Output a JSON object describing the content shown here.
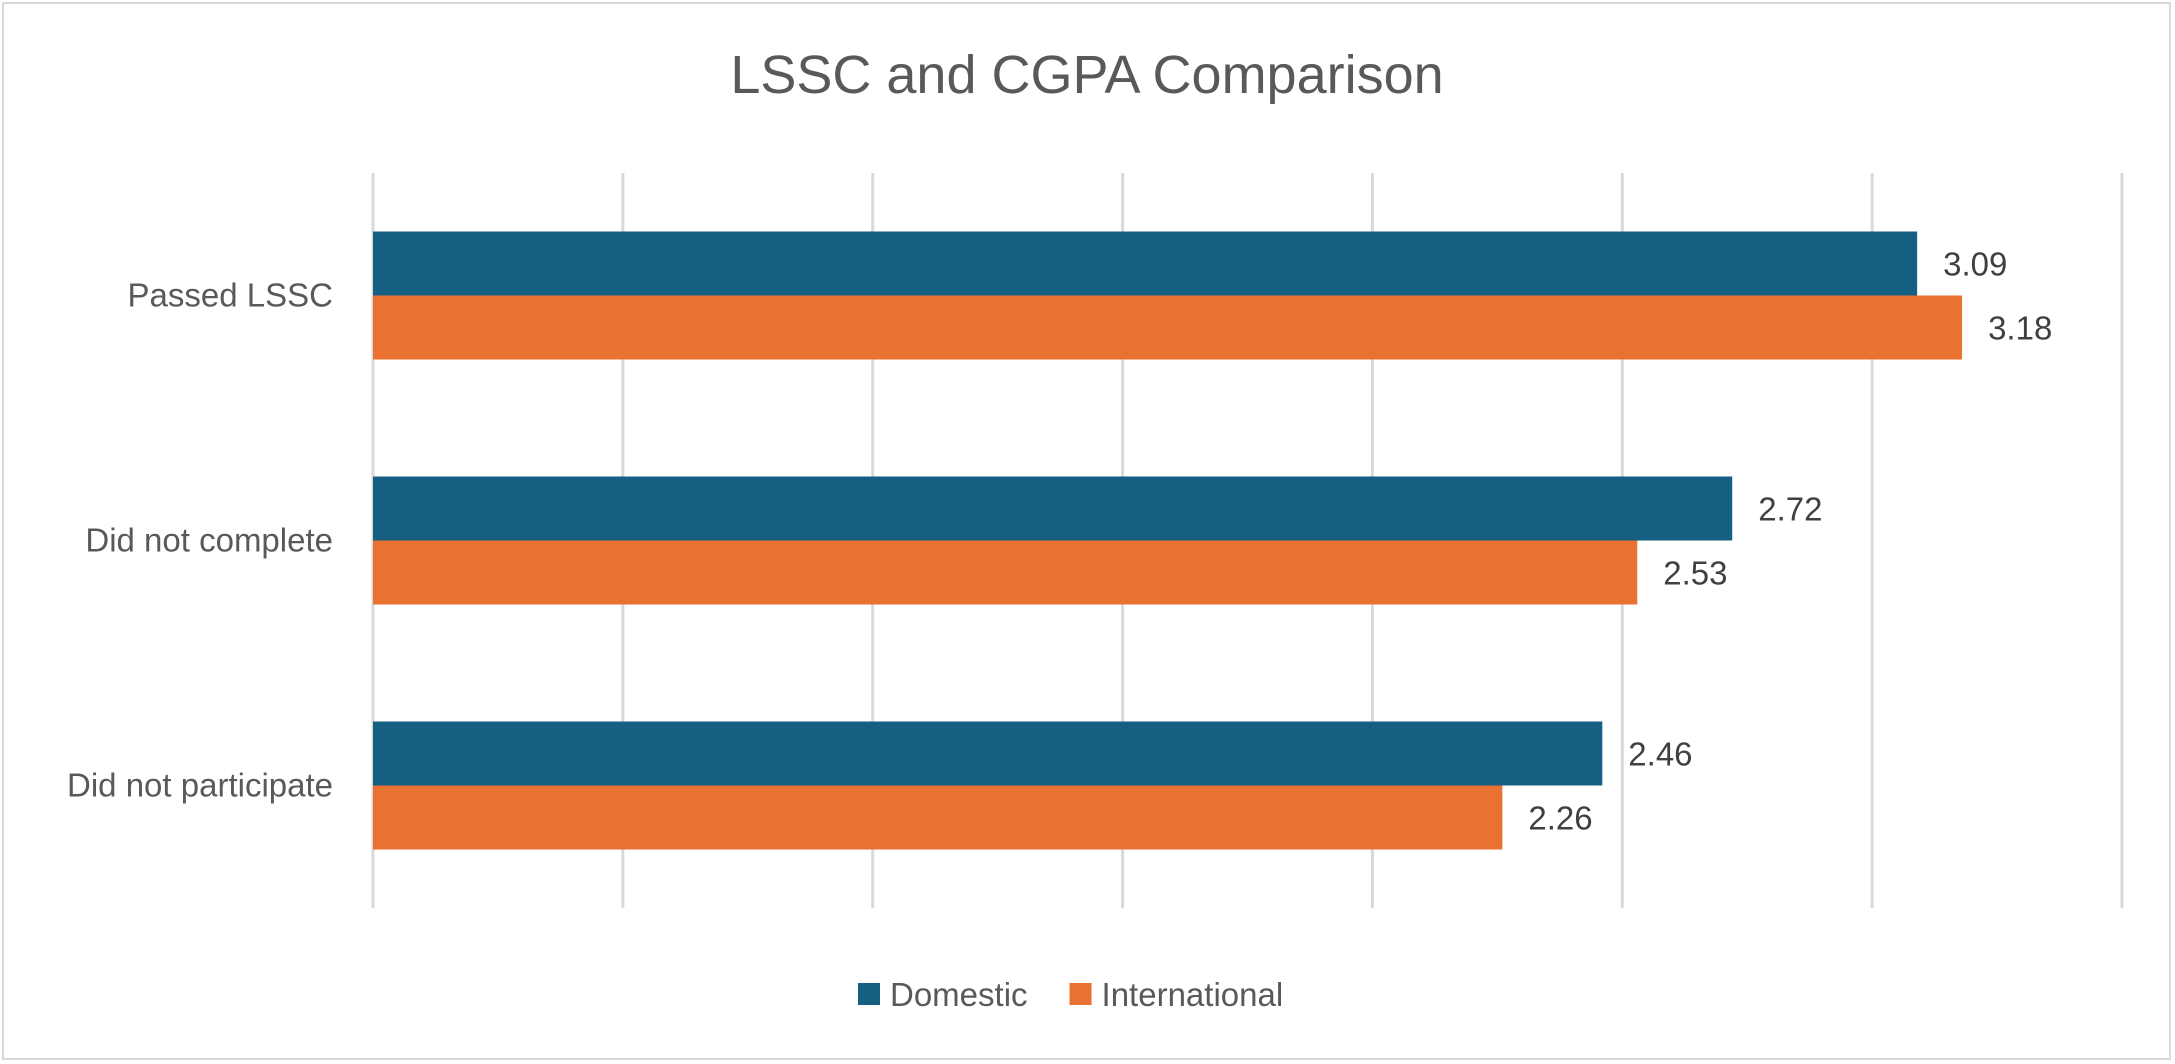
{
  "chart_data": {
    "type": "bar",
    "orientation": "horizontal",
    "title": "LSSC and CGPA Comparison",
    "categories": [
      "Passed LSSC",
      "Did not complete",
      "Did not participate"
    ],
    "series": [
      {
        "name": "Domestic",
        "values": [
          3.09,
          2.72,
          2.46
        ],
        "color": "#156082"
      },
      {
        "name": "International",
        "values": [
          3.18,
          2.53,
          2.26
        ],
        "color": "#E97132"
      }
    ],
    "xlim": [
      0,
      3.5
    ],
    "x_gridline_step": 0.5,
    "x_tick_labels_shown": false,
    "grid": true,
    "data_labels": true,
    "legend": "bottom"
  }
}
